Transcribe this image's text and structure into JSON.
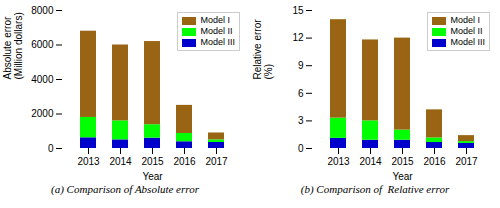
{
  "chart_data": [
    {
      "type": "bar",
      "stacked": true,
      "caption": "(a) Comparison of Absolute error",
      "categories": [
        "2013",
        "2014",
        "2015",
        "2016",
        "2017"
      ],
      "series": [
        {
          "name": "Model I",
          "color": "#996515",
          "values": [
            5000,
            4400,
            4820,
            1630,
            400
          ]
        },
        {
          "name": "Model II",
          "color": "#00FF00",
          "values": [
            1180,
            1100,
            780,
            480,
            150
          ]
        },
        {
          "name": "Model III",
          "color": "#0000CD",
          "values": [
            620,
            500,
            600,
            390,
            350
          ]
        }
      ],
      "xlabel": "Year",
      "ylabel": "Absolute error\n(Million dollars)",
      "ylim": [
        0,
        8000
      ],
      "yticks": [
        0,
        2000,
        4000,
        6000,
        8000
      ],
      "legend": "upper right",
      "grid": false
    },
    {
      "type": "bar",
      "stacked": true,
      "caption": "(b) Comparison of  Relative error",
      "categories": [
        "2013",
        "2014",
        "2015",
        "2016",
        "2017"
      ],
      "series": [
        {
          "name": "Model I",
          "color": "#996515",
          "values": [
            10.7,
            8.8,
            10.0,
            3.05,
            0.65
          ]
        },
        {
          "name": "Model II",
          "color": "#00FF00",
          "values": [
            2.2,
            2.1,
            1.1,
            0.5,
            0.2
          ]
        },
        {
          "name": "Model III",
          "color": "#0000CD",
          "values": [
            1.1,
            0.9,
            0.9,
            0.65,
            0.55
          ]
        }
      ],
      "xlabel": "Year",
      "ylabel": "Relative error\n(%)",
      "ylim": [
        0,
        15
      ],
      "yticks": [
        0,
        3,
        6,
        9,
        12,
        15
      ],
      "legend": "upper right",
      "grid": false
    }
  ]
}
